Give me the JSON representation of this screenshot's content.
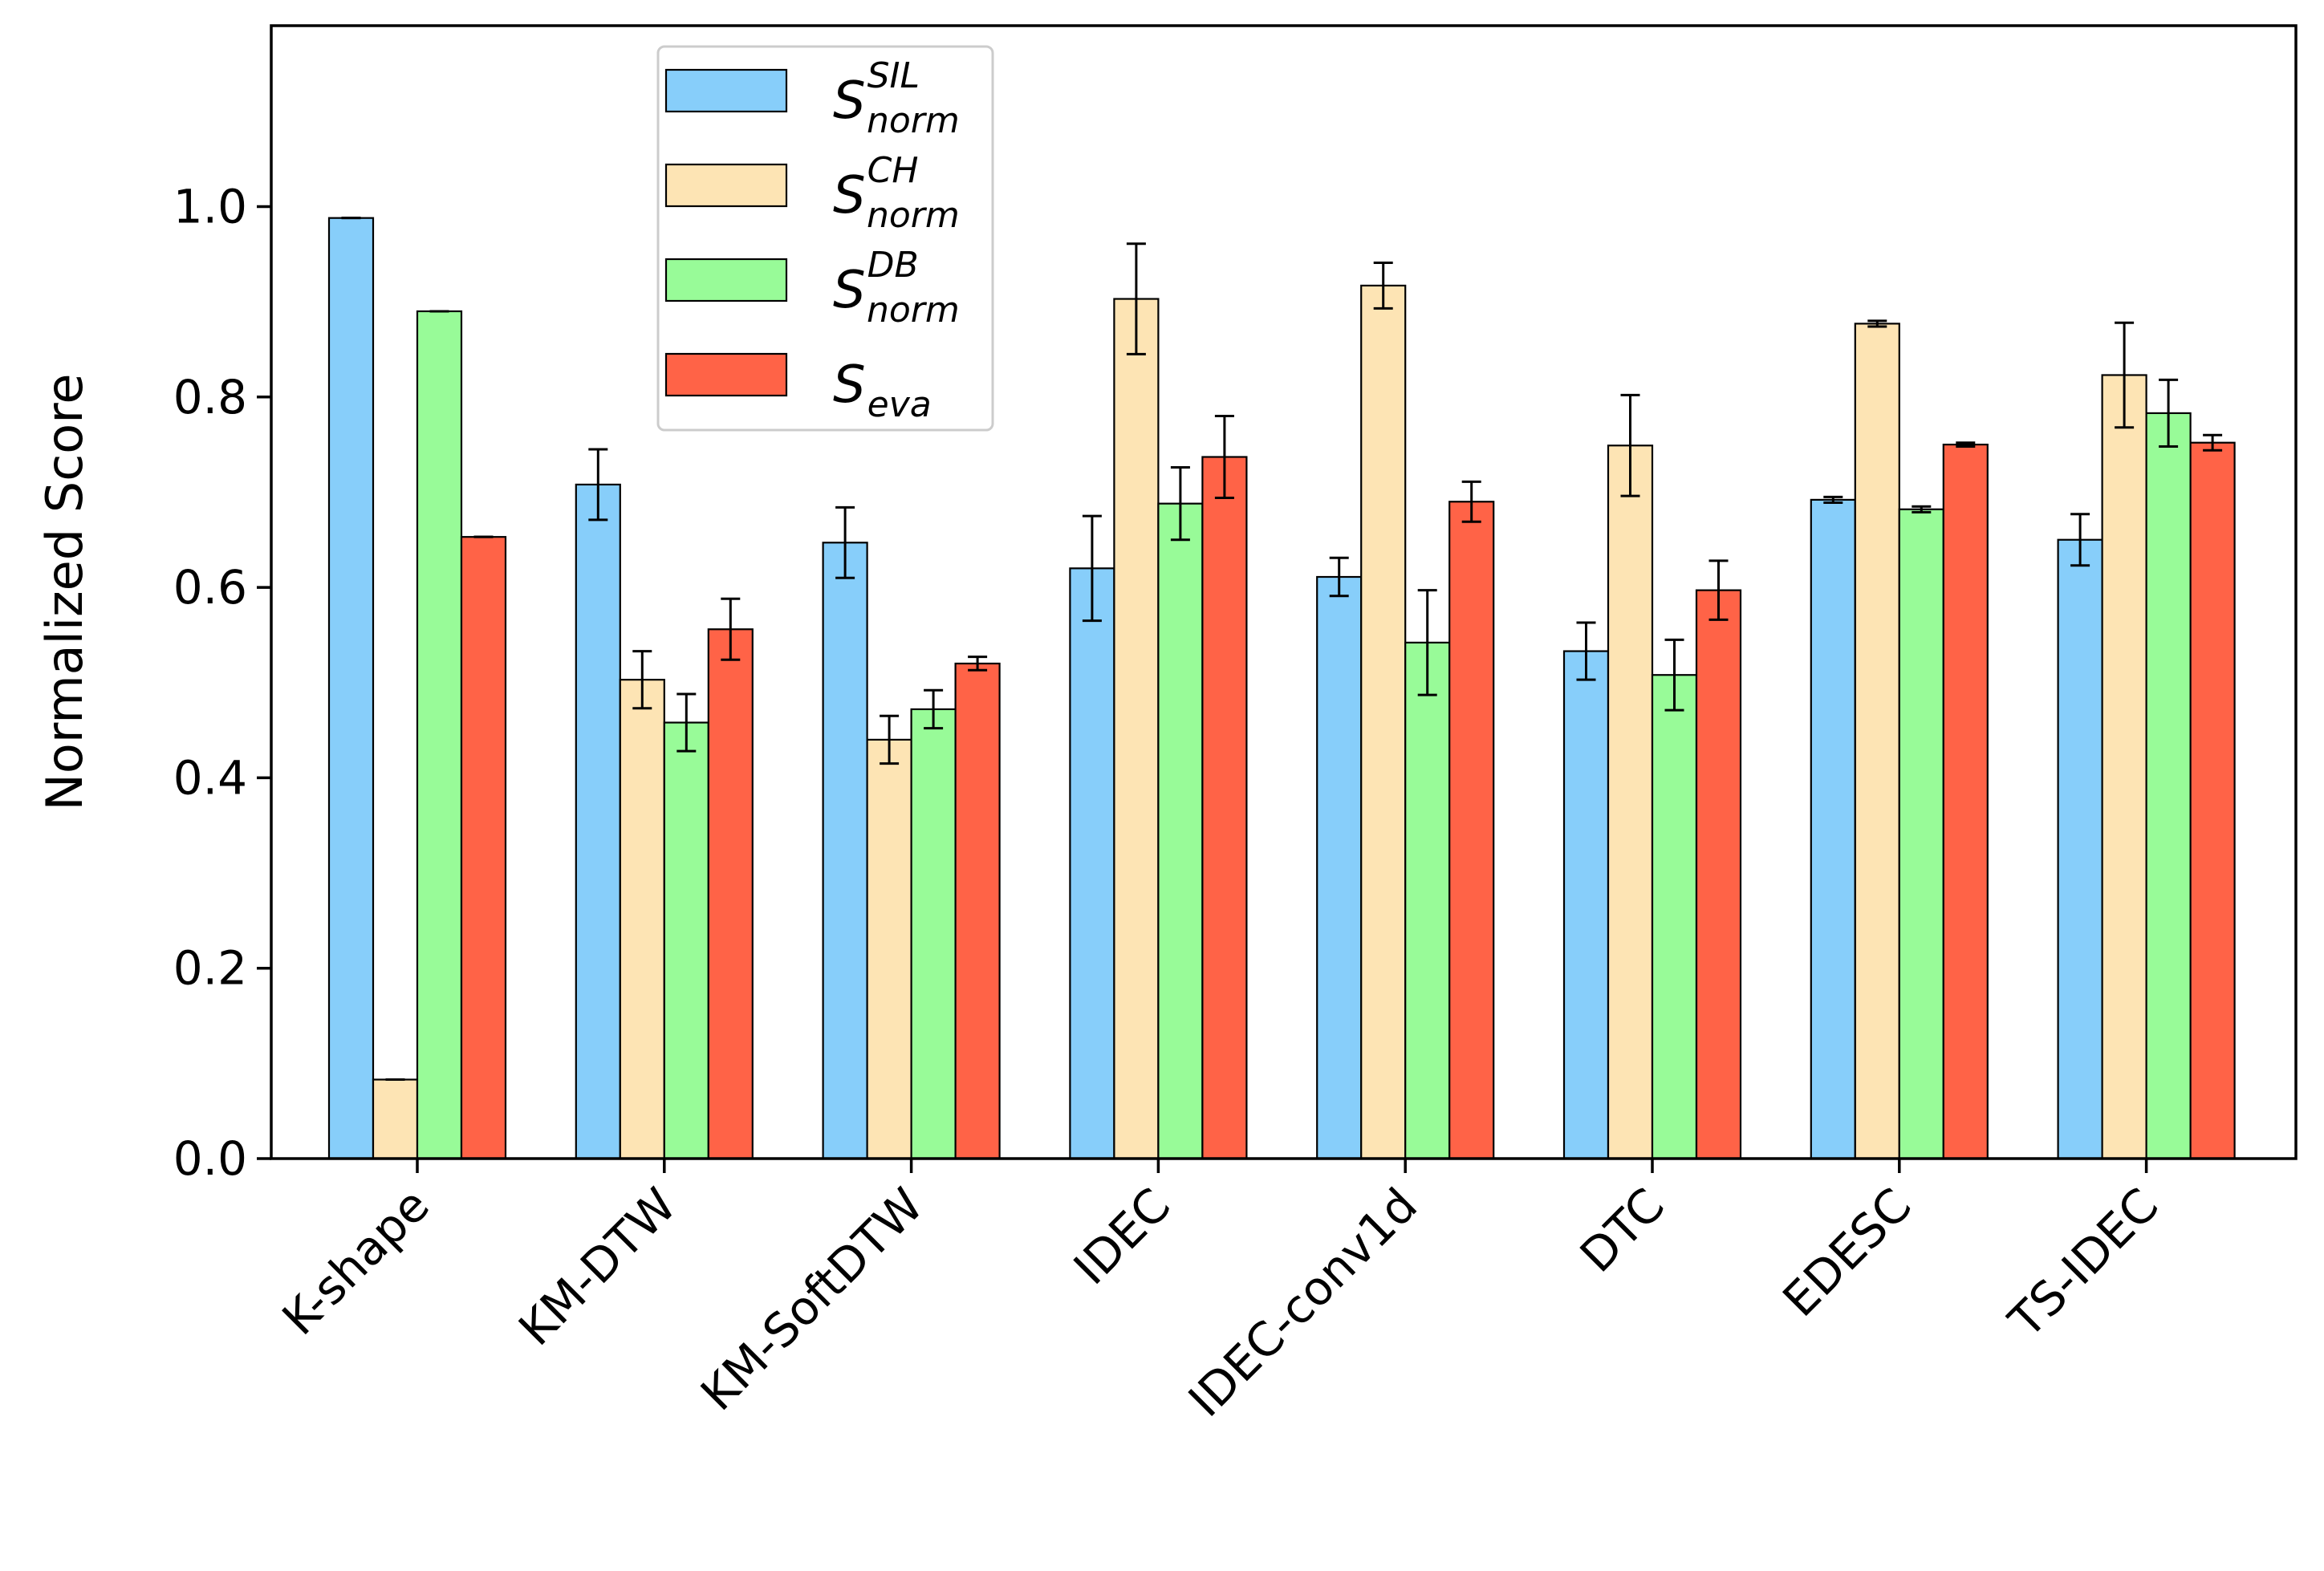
{
  "chart_data": {
    "type": "bar",
    "title": "",
    "xlabel": "",
    "ylabel": "Normalized Score",
    "ylim": [
      0,
      1.19
    ],
    "yticks": [
      "0.0",
      "0.2",
      "0.4",
      "0.6",
      "0.8",
      "1.0"
    ],
    "grid": false,
    "legend_position": "top-left",
    "categories": [
      "K-shape",
      "KM-DTW",
      "KM-SoftDTW",
      "IDEC",
      "IDEC-conv1d",
      "DTC",
      "EDESC",
      "TS-IDEC"
    ],
    "series": [
      {
        "name": "S_norm^SIL",
        "legend": {
          "base": "S",
          "sup": "SIL",
          "sub": "norm"
        },
        "color": "#87CEFA",
        "values": [
          0.988,
          0.708,
          0.647,
          0.62,
          0.611,
          0.533,
          0.692,
          0.65
        ],
        "errors": [
          0.0,
          0.037,
          0.037,
          0.055,
          0.02,
          0.03,
          0.003,
          0.027
        ]
      },
      {
        "name": "S_norm^CH",
        "legend": {
          "base": "S",
          "sup": "CH",
          "sub": "norm"
        },
        "color": "#FDE4B4",
        "values": [
          0.083,
          0.503,
          0.44,
          0.903,
          0.917,
          0.749,
          0.877,
          0.823
        ],
        "errors": [
          0.0,
          0.03,
          0.025,
          0.058,
          0.024,
          0.053,
          0.003,
          0.055
        ]
      },
      {
        "name": "S_norm^DB",
        "legend": {
          "base": "S",
          "sup": "DB",
          "sub": "norm"
        },
        "color": "#98FB98",
        "values": [
          0.89,
          0.458,
          0.472,
          0.688,
          0.542,
          0.508,
          0.682,
          0.783
        ],
        "errors": [
          0.0,
          0.03,
          0.02,
          0.038,
          0.055,
          0.037,
          0.003,
          0.035
        ]
      },
      {
        "name": "S_eva",
        "legend": {
          "base": "S",
          "sup": "",
          "sub": "eva"
        },
        "color": "#FF6347",
        "values": [
          0.653,
          0.556,
          0.52,
          0.737,
          0.69,
          0.597,
          0.75,
          0.752
        ],
        "errors": [
          0.0,
          0.032,
          0.007,
          0.043,
          0.021,
          0.031,
          0.002,
          0.008
        ]
      }
    ]
  }
}
